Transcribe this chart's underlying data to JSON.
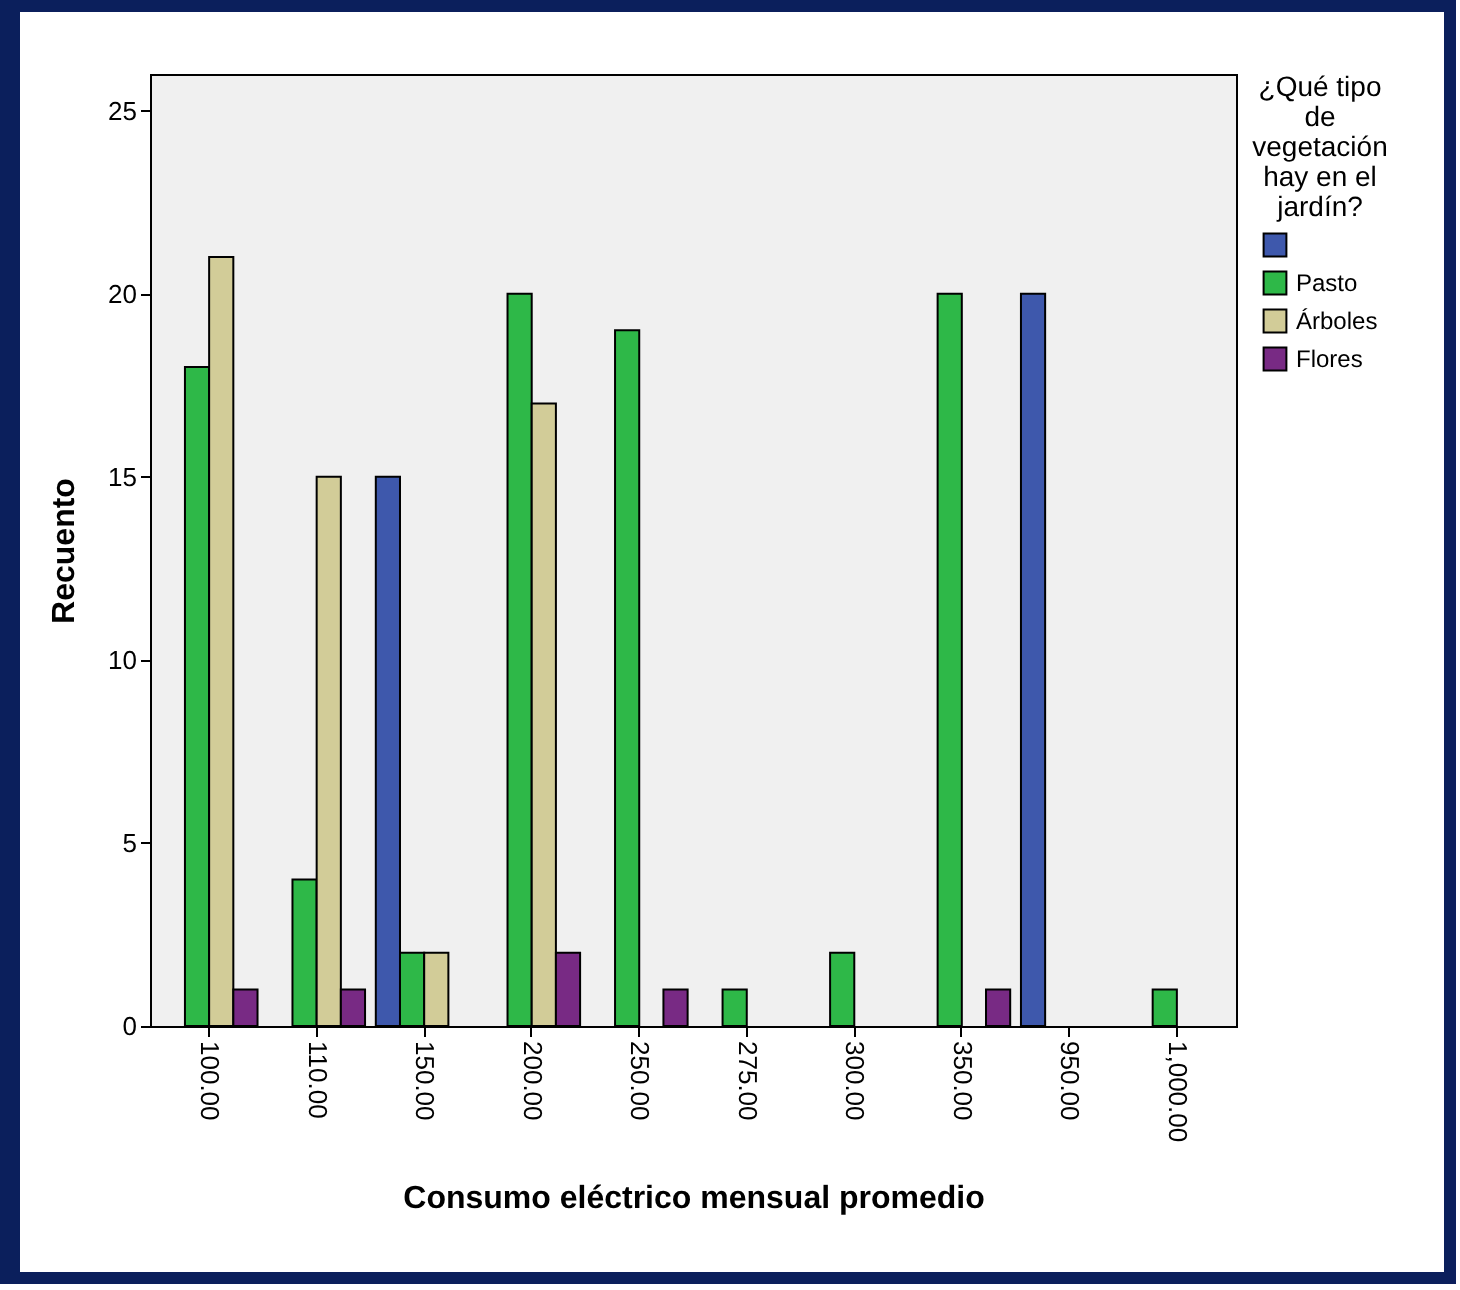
{
  "chart_data": {
    "type": "bar",
    "xlabel": "Consumo eléctrico mensual promedio",
    "ylabel": "Recuento",
    "legend_title": "¿Qué tipo de vegetación hay en el jardín?",
    "categories": [
      "100.00",
      "110.00",
      "150.00",
      "200.00",
      "250.00",
      "275.00",
      "300.00",
      "350.00",
      "950.00",
      "1,000.00"
    ],
    "series": [
      {
        "color": "#3e58ac",
        "values": [
          null,
          null,
          15,
          null,
          null,
          null,
          null,
          null,
          20,
          null
        ]
      },
      {
        "name": "Pasto",
        "color": "#2eb848",
        "values": [
          18,
          4,
          2,
          20,
          19,
          1,
          2,
          20,
          null,
          1
        ]
      },
      {
        "name": "Árboles",
        "color": "#d2cc98",
        "values": [
          21,
          15,
          2,
          17,
          null,
          null,
          null,
          null,
          null,
          null
        ]
      },
      {
        "name": "Flores",
        "color": "#782a84",
        "values": [
          1,
          1,
          null,
          2,
          1,
          null,
          null,
          1,
          null,
          null
        ]
      }
    ],
    "ylim": [
      0,
      26
    ],
    "yticks": [
      0,
      5,
      10,
      15,
      20,
      25
    ],
    "grid": false,
    "legend": "top right"
  }
}
